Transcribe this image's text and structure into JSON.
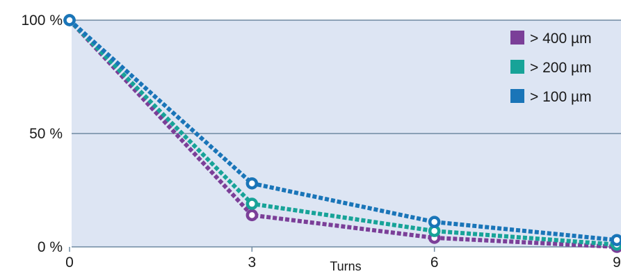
{
  "chart_data": {
    "type": "line",
    "title": "",
    "xlabel": "Turns",
    "ylabel": "",
    "x": [
      0,
      3,
      6,
      9
    ],
    "x_tick_labels": [
      "0",
      "3",
      "6",
      "9"
    ],
    "y_tick_values": [
      0,
      50,
      100
    ],
    "y_tick_labels": [
      "0 %",
      "50 %",
      "100 %"
    ],
    "xlim": [
      0,
      9
    ],
    "ylim": [
      0,
      100
    ],
    "grid": "horizontal",
    "legend_position": "top-right",
    "series": [
      {
        "name": "> 400 µm",
        "color": "#7b3f98",
        "values": [
          100,
          14,
          4,
          0
        ]
      },
      {
        "name": "> 200 µm",
        "color": "#17a398",
        "values": [
          100,
          19,
          7,
          1
        ]
      },
      {
        "name": "> 100 µm",
        "color": "#1a75b8",
        "values": [
          100,
          28,
          11,
          3
        ]
      }
    ]
  }
}
